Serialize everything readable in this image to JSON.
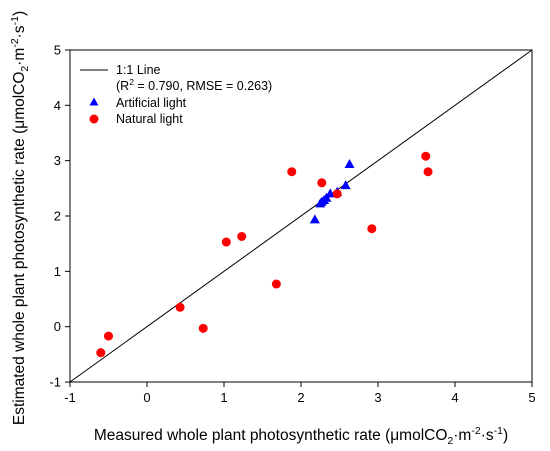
{
  "chart_data": {
    "type": "scatter",
    "xlabel": "Measured whole plant photosynthetic rate (μmolCO₂·m⁻²·s⁻¹)",
    "xlabel_parts": [
      "Measured whole plant photosynthetic rate (μmolCO",
      "2",
      "·m",
      "-2",
      "·s",
      "-1",
      ")"
    ],
    "ylabel": "Estimated whole plant photosynthetic rate (μmolCO₂·m⁻²·s⁻¹)",
    "ylabel_parts": [
      "Estimated whole plant photosynthetic rate (μmolCO",
      "2",
      "·m",
      "-2",
      "·s",
      "-1",
      ")"
    ],
    "xlim": [
      -1,
      5
    ],
    "ylim": [
      -1,
      5
    ],
    "x_ticks": [
      -1,
      0,
      1,
      2,
      3,
      4,
      5
    ],
    "y_ticks": [
      -1,
      0,
      1,
      2,
      3,
      4,
      5
    ],
    "grid": false,
    "legend_position": "top-left",
    "reference_line": {
      "name": "1:1 Line",
      "stats_parts": [
        "(R",
        "2",
        " = 0.790, RMSE = 0.263)"
      ],
      "stats": "(R² = 0.790, RMSE = 0.263)",
      "from": [
        -1,
        -1
      ],
      "to": [
        5,
        5
      ],
      "color": "#000000"
    },
    "series": [
      {
        "name": "Artificial light",
        "marker": "triangle",
        "color": "#0000ff",
        "points": [
          [
            2.18,
            1.93
          ],
          [
            2.25,
            2.22
          ],
          [
            2.27,
            2.25
          ],
          [
            2.3,
            2.28
          ],
          [
            2.33,
            2.32
          ],
          [
            2.38,
            2.4
          ],
          [
            2.47,
            2.43
          ],
          [
            2.58,
            2.55
          ],
          [
            2.63,
            2.93
          ]
        ]
      },
      {
        "name": "Natural light",
        "marker": "circle",
        "color": "#ff0000",
        "points": [
          [
            -0.6,
            -0.47
          ],
          [
            -0.5,
            -0.17
          ],
          [
            0.43,
            0.35
          ],
          [
            0.73,
            -0.03
          ],
          [
            1.03,
            1.53
          ],
          [
            1.23,
            1.63
          ],
          [
            1.68,
            0.77
          ],
          [
            1.88,
            2.8
          ],
          [
            2.27,
            2.6
          ],
          [
            2.47,
            2.4
          ],
          [
            2.92,
            1.77
          ],
          [
            3.62,
            3.08
          ],
          [
            3.65,
            2.8
          ]
        ]
      }
    ]
  }
}
